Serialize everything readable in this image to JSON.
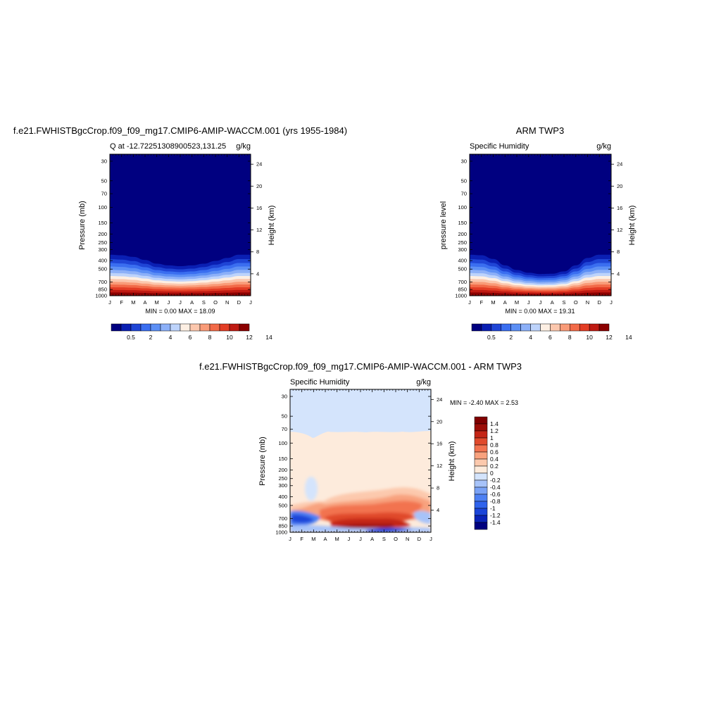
{
  "palette": {
    "levels14": [
      "#000080",
      "#0a1fb3",
      "#1f45d6",
      "#3a6ef0",
      "#5c8ff5",
      "#8cb0f8",
      "#bdd3fb",
      "#fdefe3",
      "#fcc7ad",
      "#f99b78",
      "#f26a48",
      "#e33d25",
      "#bf1a12",
      "#8b0000"
    ],
    "diff": [
      "#000080",
      "#0a23b8",
      "#1b45d9",
      "#2f63ec",
      "#4d80f3",
      "#7aa2f6",
      "#a7c3f9",
      "#d4e4fc",
      "#fdebdc",
      "#fcc9ad",
      "#f8a27e",
      "#f27350",
      "#e04a2c",
      "#c42516",
      "#9c0d07",
      "#800000"
    ]
  },
  "chart_data": [
    {
      "type": "heatmap",
      "title": "f.e21.FWHISTBgcCrop.f09_f09_mg17.CMIP6-AMIP-WACCM.001 (yrs 1955-1984)",
      "left_string": "Q at -12.72251308900523,131.25",
      "right_string": "g/kg",
      "ylabel": "Pressure (mb)",
      "ylabel_right": "Height (km)",
      "x_ticks": [
        "J",
        "F",
        "M",
        "A",
        "M",
        "J",
        "J",
        "A",
        "S",
        "O",
        "N",
        "D",
        "J"
      ],
      "y_ticks": [
        30,
        50,
        70,
        100,
        150,
        200,
        250,
        300,
        400,
        500,
        700,
        850,
        1000
      ],
      "ylim": [
        1000,
        25
      ],
      "y_right_ticks": [
        4,
        8,
        12,
        16,
        20,
        24
      ],
      "stats": "MIN =   0.00 MAX =  18.09",
      "min": 0.0,
      "max": 18.09,
      "colorbar_labels": [
        "0.5",
        "2",
        "4",
        "6",
        "8",
        "10",
        "12",
        "14"
      ],
      "moist_top_mb": [
        290,
        295,
        310,
        340,
        380,
        400,
        410,
        400,
        380,
        350,
        320,
        290,
        290
      ]
    },
    {
      "type": "heatmap",
      "title": "ARM TWP3",
      "left_string": "Specific Humidity",
      "right_string": "g/kg",
      "ylabel": "pressure level",
      "ylabel_right": "Height (km)",
      "x_ticks": [
        "J",
        "F",
        "M",
        "A",
        "M",
        "J",
        "J",
        "A",
        "S",
        "O",
        "N",
        "D",
        "J"
      ],
      "y_ticks": [
        30,
        50,
        70,
        100,
        150,
        200,
        250,
        300,
        400,
        500,
        700,
        850,
        1000
      ],
      "ylim": [
        1000,
        25
      ],
      "y_right_ticks": [
        4,
        8,
        12,
        16,
        20,
        24
      ],
      "stats": "MIN =   0.00 MAX =  19.31",
      "min": 0.0,
      "max": 19.31,
      "colorbar_labels": [
        "0.5",
        "2",
        "4",
        "6",
        "8",
        "10",
        "12",
        "14"
      ],
      "moist_top_mb": [
        290,
        295,
        330,
        400,
        460,
        500,
        520,
        515,
        480,
        400,
        320,
        290,
        290
      ]
    },
    {
      "type": "heatmap",
      "title": "f.e21.FWHISTBgcCrop.f09_f09_mg17.CMIP6-AMIP-WACCM.001 - ARM TWP3",
      "left_string": "Specific Humidity",
      "right_string": "g/kg",
      "ylabel": "Pressure (mb)",
      "ylabel_right": "Height (km)",
      "x_ticks": [
        "J",
        "F",
        "M",
        "A",
        "M",
        "J",
        "J",
        "A",
        "S",
        "O",
        "N",
        "D",
        "J"
      ],
      "y_ticks": [
        30,
        50,
        70,
        100,
        150,
        200,
        250,
        300,
        400,
        500,
        700,
        850,
        1000
      ],
      "ylim": [
        1000,
        25
      ],
      "y_right_ticks": [
        4,
        8,
        12,
        16,
        20,
        24
      ],
      "stats": "MIN =  -2.40 MAX =   2.53",
      "min": -2.4,
      "max": 2.53,
      "colorbar_labels": [
        "1.4",
        "1.2",
        "1",
        "0.8",
        "0.6",
        "0.4",
        "0.2",
        "0",
        "-0.2",
        "-0.4",
        "-0.6",
        "-0.8",
        "-1",
        "-1.2",
        "-1.4"
      ]
    }
  ]
}
